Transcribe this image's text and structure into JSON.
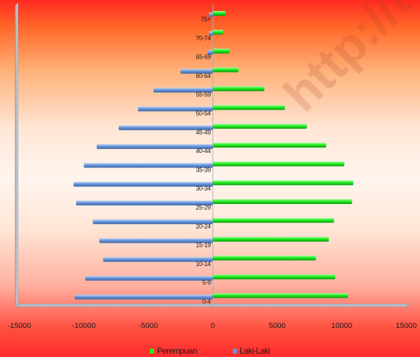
{
  "watermark": "http://tan",
  "chart_data": {
    "type": "bar",
    "orientation": "horizontal",
    "categories": [
      "0-4",
      "5-9",
      "10-14",
      "15-19",
      "20-24",
      "25-29",
      "30-34",
      "35-39",
      "40-44",
      "45-49",
      "50-54",
      "55-59",
      "60-64",
      "65-69",
      "70-74",
      "75+"
    ],
    "series": [
      {
        "name": "Perempuan",
        "color": "#22ee22",
        "values": [
          10500,
          9500,
          8000,
          9000,
          9400,
          10800,
          10900,
          10200,
          8800,
          7300,
          5600,
          4000,
          2000,
          1300,
          800,
          1000
        ]
      },
      {
        "name": "Laki-Laki",
        "color": "#6a96d8",
        "values": [
          -10700,
          -9900,
          -8500,
          -8800,
          -9300,
          -10600,
          -10800,
          -10000,
          -9000,
          -7300,
          -5800,
          -4600,
          -2500,
          -400,
          -300,
          -300
        ]
      }
    ],
    "xlim": [
      -15000,
      15000
    ],
    "xticks": [
      -15000,
      -10000,
      -5000,
      0,
      5000,
      10000,
      15000
    ],
    "xtick_labels": [
      "-15000",
      "-10000",
      "-5000",
      "0",
      "5000",
      "10000",
      "15000"
    ],
    "legend_position": "bottom",
    "grid": false
  }
}
